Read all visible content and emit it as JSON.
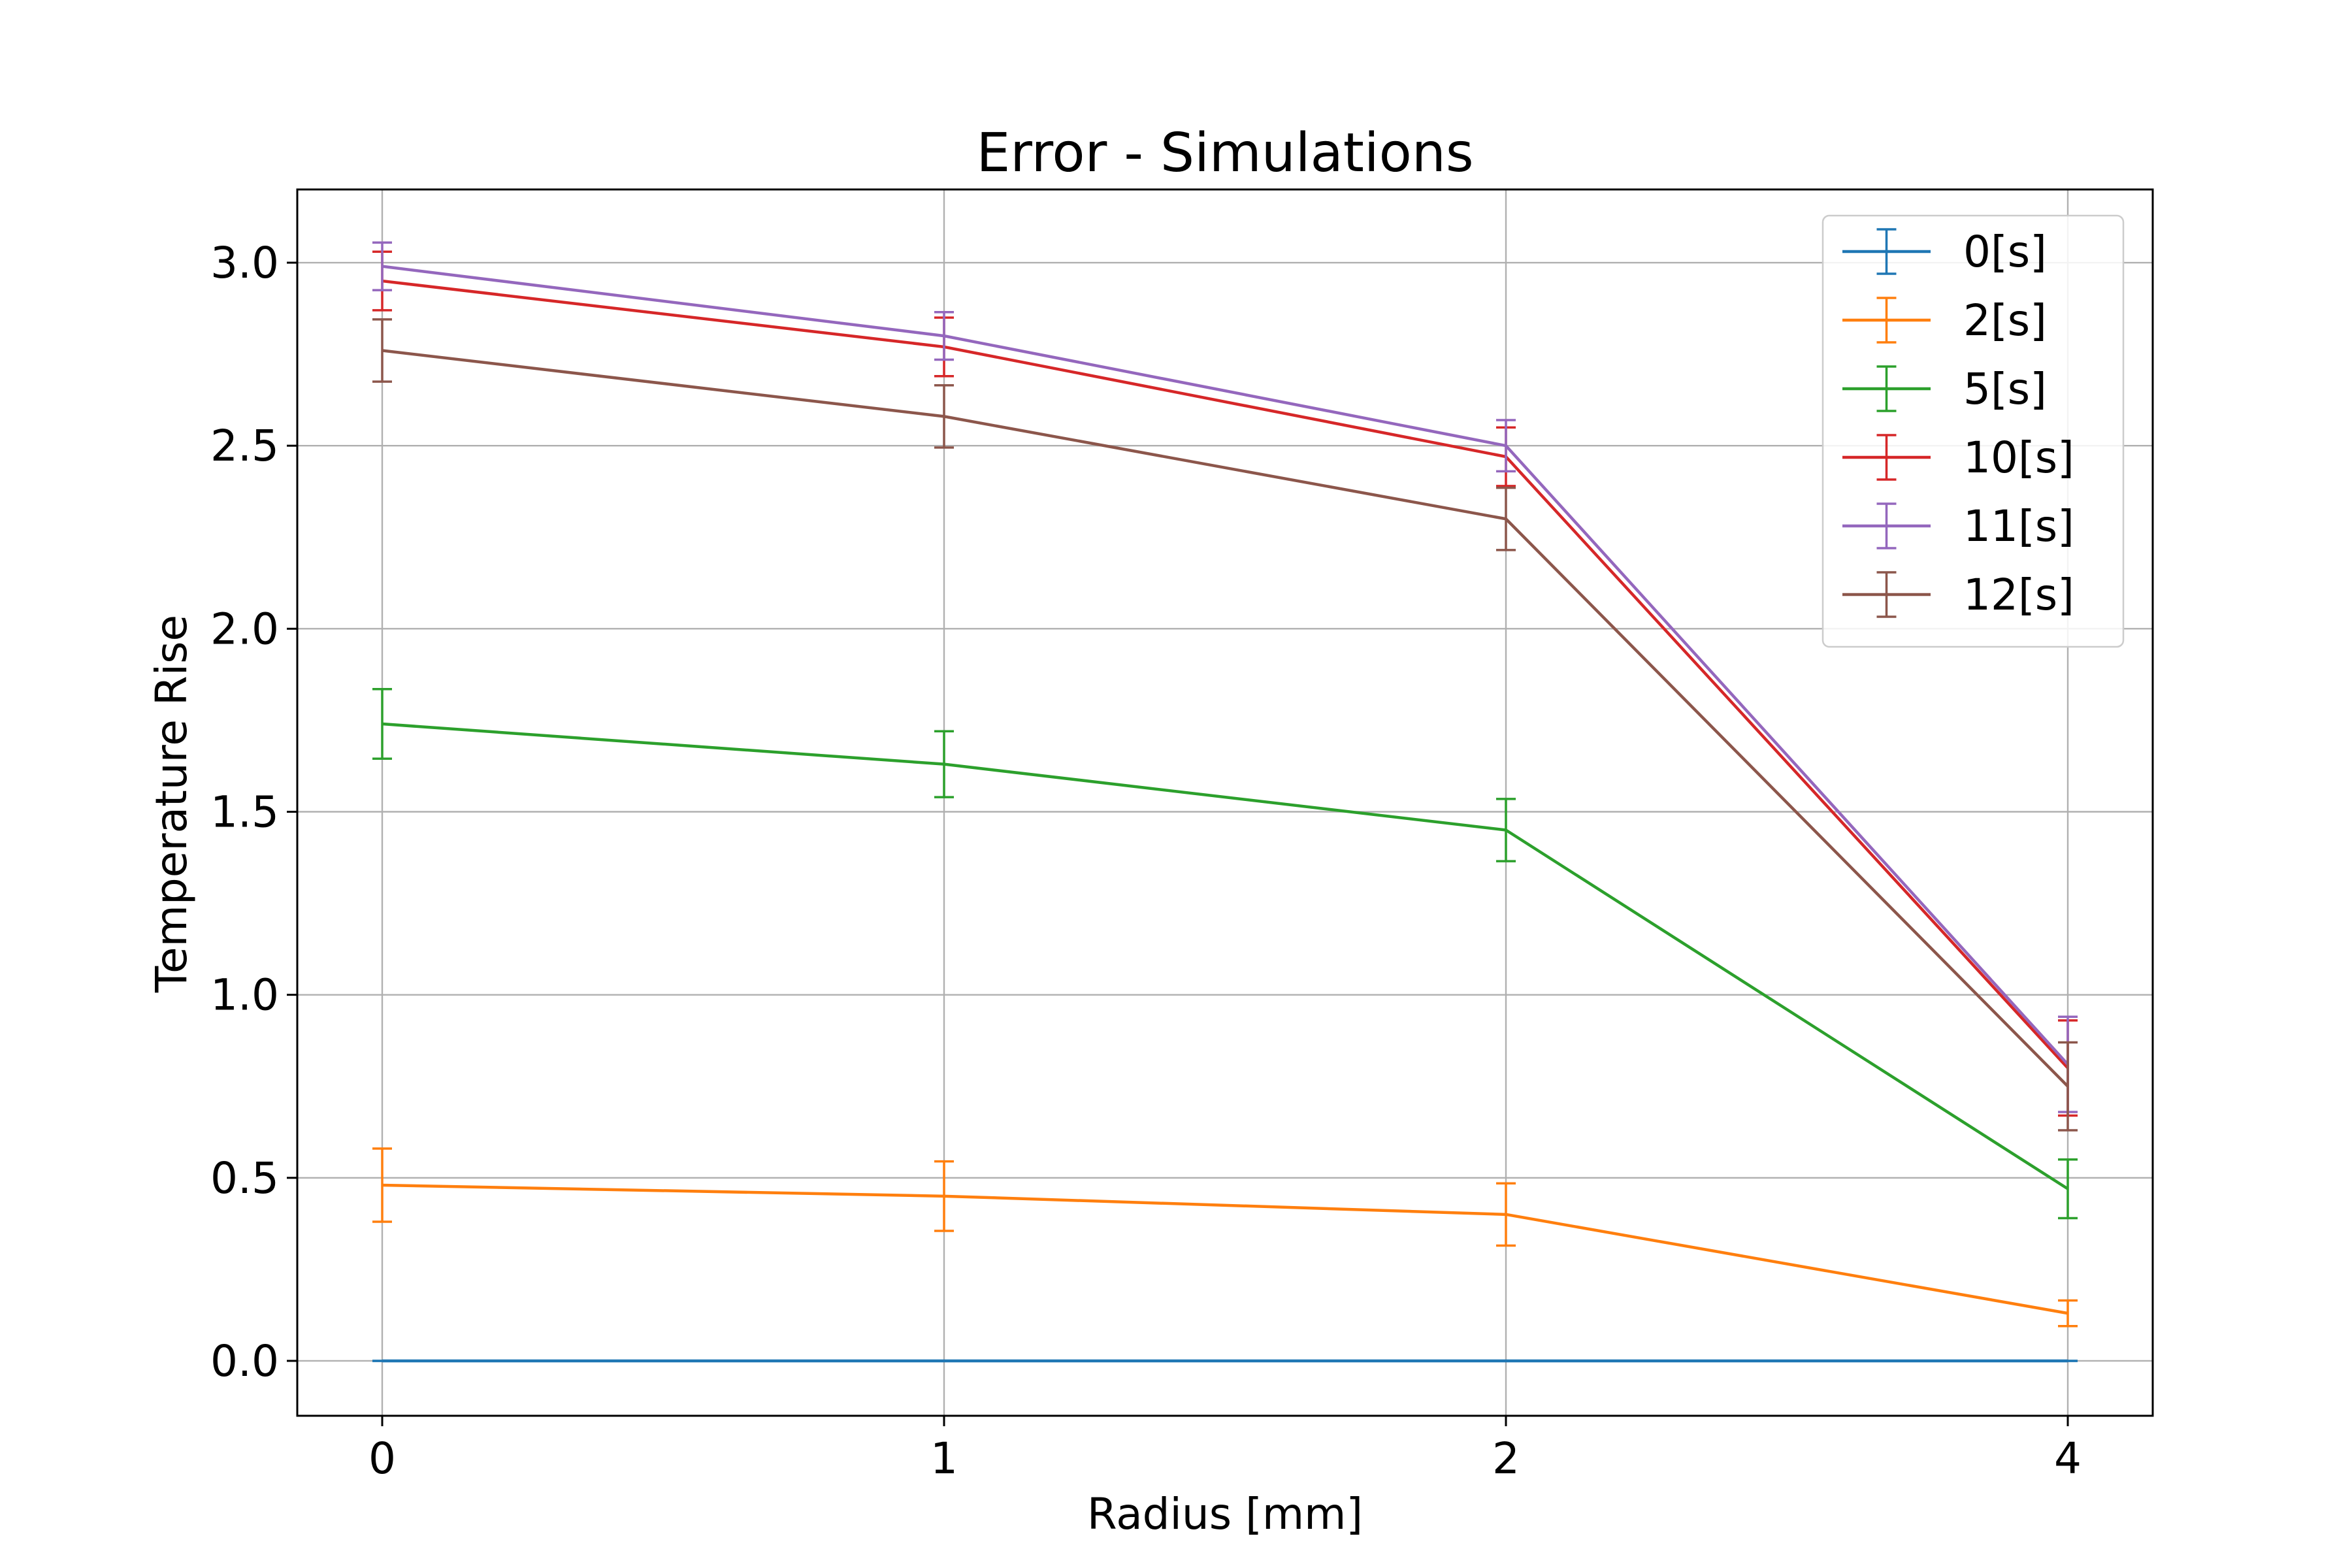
{
  "chart_data": {
    "type": "line",
    "title": "Error - Simulations",
    "xlabel": "Radius [mm]",
    "ylabel": "Temperature Rise",
    "x": [
      0,
      1,
      2,
      4
    ],
    "x_tick_labels": [
      "0",
      "1",
      "2",
      "4"
    ],
    "ylim": [
      -0.15,
      3.2
    ],
    "y_ticks": [
      0.0,
      0.5,
      1.0,
      1.5,
      2.0,
      2.5,
      3.0
    ],
    "y_tick_labels": [
      "0.0",
      "0.5",
      "1.0",
      "1.5",
      "2.0",
      "2.5",
      "3.0"
    ],
    "grid": true,
    "legend_position": "top-right",
    "series": [
      {
        "name": "0[s]",
        "color": "#1f77b4",
        "values": [
          0.0,
          0.0,
          0.0,
          0.0
        ],
        "errors": [
          0.0,
          0.0,
          0.0,
          0.0
        ]
      },
      {
        "name": "2[s]",
        "color": "#ff7f0e",
        "values": [
          0.48,
          0.45,
          0.4,
          0.13
        ],
        "errors": [
          0.1,
          0.095,
          0.085,
          0.035
        ]
      },
      {
        "name": "5[s]",
        "color": "#2ca02c",
        "values": [
          1.74,
          1.63,
          1.45,
          0.47
        ],
        "errors": [
          0.095,
          0.09,
          0.085,
          0.08
        ]
      },
      {
        "name": "10[s]",
        "color": "#d62728",
        "values": [
          2.95,
          2.77,
          2.47,
          0.8
        ],
        "errors": [
          0.08,
          0.08,
          0.08,
          0.13
        ]
      },
      {
        "name": "11[s]",
        "color": "#9467bd",
        "values": [
          2.99,
          2.8,
          2.5,
          0.81
        ],
        "errors": [
          0.065,
          0.065,
          0.07,
          0.13
        ]
      },
      {
        "name": "12[s]",
        "color": "#8c564b",
        "values": [
          2.76,
          2.58,
          2.3,
          0.75
        ],
        "errors": [
          0.085,
          0.085,
          0.085,
          0.12
        ]
      }
    ]
  }
}
